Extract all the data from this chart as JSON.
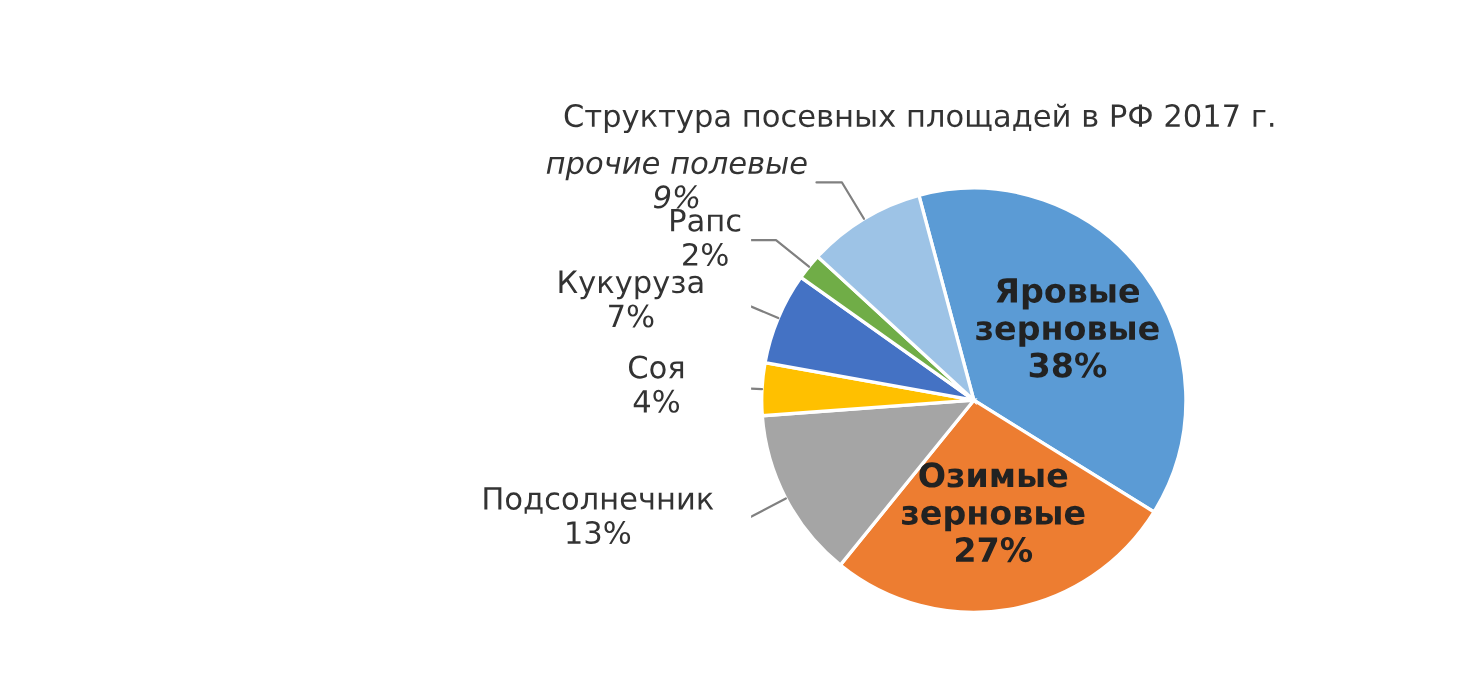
{
  "chart_data": {
    "type": "pie",
    "title": "Структура посевных площадей в РФ 2017 г.",
    "categories": [
      "Яровые\nзерновые",
      "Озимые\nзерновые",
      "Подсолнечник",
      "Соя",
      "Кукуруза",
      "Рапс",
      "прочие полевые"
    ],
    "values": [
      38,
      27,
      13,
      4,
      7,
      2,
      9
    ],
    "value_labels": [
      "38%",
      "27%",
      "13%",
      "4%",
      "7%",
      "2%",
      "9%"
    ],
    "colors": [
      "#5b9bd5",
      "#ed7d31",
      "#a5a5a5",
      "#ffc000",
      "#4472c4",
      "#70ad47",
      "#9dc3e6"
    ],
    "legend": false
  }
}
